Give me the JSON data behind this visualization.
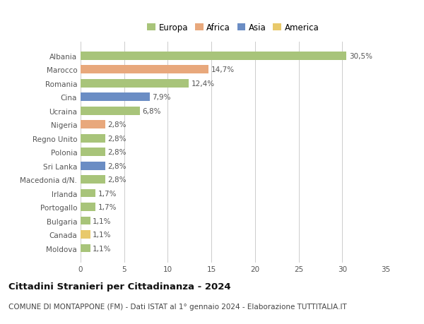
{
  "categories": [
    "Albania",
    "Marocco",
    "Romania",
    "Cina",
    "Ucraina",
    "Nigeria",
    "Regno Unito",
    "Polonia",
    "Sri Lanka",
    "Macedonia d/N.",
    "Irlanda",
    "Portogallo",
    "Bulgaria",
    "Canada",
    "Moldova"
  ],
  "values": [
    30.5,
    14.7,
    12.4,
    7.9,
    6.8,
    2.8,
    2.8,
    2.8,
    2.8,
    2.8,
    1.7,
    1.7,
    1.1,
    1.1,
    1.1
  ],
  "labels": [
    "30,5%",
    "14,7%",
    "12,4%",
    "7,9%",
    "6,8%",
    "2,8%",
    "2,8%",
    "2,8%",
    "2,8%",
    "2,8%",
    "1,7%",
    "1,7%",
    "1,1%",
    "1,1%",
    "1,1%"
  ],
  "colors": [
    "#a8c47a",
    "#e8a87c",
    "#a8c47a",
    "#6b8dc4",
    "#a8c47a",
    "#e8a87c",
    "#a8c47a",
    "#a8c47a",
    "#6b8dc4",
    "#a8c47a",
    "#a8c47a",
    "#a8c47a",
    "#a8c47a",
    "#e8c96b",
    "#a8c47a"
  ],
  "legend_labels": [
    "Europa",
    "Africa",
    "Asia",
    "America"
  ],
  "legend_colors": [
    "#a8c47a",
    "#e8a87c",
    "#6b8dc4",
    "#e8c96b"
  ],
  "xlim": [
    0,
    35
  ],
  "xticks": [
    0,
    5,
    10,
    15,
    20,
    25,
    30,
    35
  ],
  "title": "Cittadini Stranieri per Cittadinanza - 2024",
  "subtitle": "COMUNE DI MONTAPPONE (FM) - Dati ISTAT al 1° gennaio 2024 - Elaborazione TUTTITALIA.IT",
  "bg_color": "#ffffff",
  "grid_color": "#cccccc",
  "bar_height": 0.6,
  "title_fontsize": 9.5,
  "subtitle_fontsize": 7.5,
  "label_fontsize": 7.5,
  "tick_fontsize": 7.5,
  "legend_fontsize": 8.5
}
